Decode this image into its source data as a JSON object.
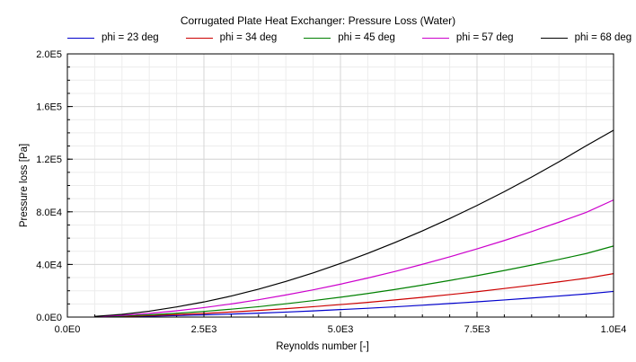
{
  "chart_data": {
    "type": "line",
    "title": "Corrugated Plate Heat Exchanger: Pressure Loss (Water)",
    "xlabel": "Reynolds number [-]",
    "ylabel": "Pressure loss [Pa]",
    "xlim": [
      0,
      10000
    ],
    "ylim": [
      0,
      200000
    ],
    "x_ticks": [
      0,
      2500,
      5000,
      7500,
      10000
    ],
    "x_tick_labels": [
      "0.0E0",
      "2.5E3",
      "5.0E3",
      "7.5E3",
      "1.0E4"
    ],
    "y_ticks": [
      0,
      40000,
      80000,
      120000,
      160000,
      200000
    ],
    "y_tick_labels": [
      "0.0E0",
      "4.0E4",
      "8.0E4",
      "1.2E5",
      "1.6E5",
      "2.0E5"
    ],
    "grid": true,
    "legend_position": "top",
    "x": [
      500,
      1000,
      1500,
      2000,
      2500,
      3000,
      3500,
      4000,
      4500,
      5000,
      5500,
      6000,
      6500,
      7000,
      7500,
      8000,
      8500,
      9000,
      9500,
      10000
    ],
    "series": [
      {
        "name": "phi = 23 deg",
        "color": "#0000cc",
        "values": [
          100,
          350,
          700,
          1150,
          1700,
          2300,
          3000,
          3800,
          4700,
          5700,
          6700,
          7800,
          9000,
          10300,
          11600,
          13000,
          14500,
          16000,
          17600,
          19500
        ]
      },
      {
        "name": "phi = 34 deg",
        "color": "#cc0000",
        "values": [
          150,
          550,
          1150,
          1900,
          2800,
          3850,
          5050,
          6400,
          7900,
          9500,
          11200,
          13050,
          15000,
          17100,
          19300,
          21700,
          24200,
          26800,
          29500,
          33000
        ]
      },
      {
        "name": "phi = 45 deg",
        "color": "#008000",
        "values": [
          200,
          800,
          1700,
          2900,
          4300,
          6000,
          7900,
          10100,
          12500,
          15100,
          17900,
          21000,
          24300,
          27800,
          31500,
          35400,
          39500,
          43800,
          48300,
          54000
        ]
      },
      {
        "name": "phi = 57 deg",
        "color": "#cc00cc",
        "values": [
          350,
          1300,
          2800,
          4800,
          7200,
          10000,
          13200,
          16800,
          20700,
          25000,
          29700,
          34700,
          40100,
          45800,
          51800,
          58200,
          65000,
          72100,
          79600,
          89000
        ]
      },
      {
        "name": "phi = 68 deg",
        "color": "#000000",
        "values": [
          550,
          2050,
          4500,
          7700,
          11500,
          16000,
          21200,
          27100,
          33600,
          40700,
          48400,
          56700,
          65500,
          74900,
          84800,
          95300,
          106400,
          118000,
          130200,
          142000
        ]
      }
    ]
  }
}
